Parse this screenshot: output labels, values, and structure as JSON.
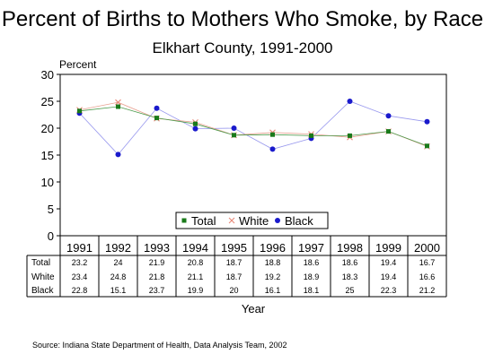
{
  "title": "Percent of Births to Mothers Who Smoke, by Race",
  "subtitle": "Elkhart County, 1991-2000",
  "source": "Source:  Indiana State Department of Health, Data Analysis Team, 2002",
  "chart_data": {
    "type": "line",
    "title": "Percent of Births to Mothers Who Smoke, by Race",
    "subtitle": "Elkhart County, 1991-2000",
    "ylabel": "Percent",
    "xlabel": "Year",
    "ylim": [
      0,
      30
    ],
    "yticks": [
      0,
      5,
      10,
      15,
      20,
      25,
      30
    ],
    "grid": false,
    "legend_position": "bottom-center",
    "x": [
      "1991",
      "1992",
      "1993",
      "1994",
      "1995",
      "1996",
      "1997",
      "1998",
      "1999",
      "2000"
    ],
    "series": [
      {
        "name": "Total",
        "marker": "square",
        "color": "#1a7a1a",
        "values": [
          23.2,
          24,
          21.9,
          20.8,
          18.7,
          18.8,
          18.6,
          18.6,
          19.4,
          16.7
        ],
        "labels": [
          "23.2",
          "24",
          "21.9",
          "20.8",
          "18.7",
          "18.8",
          "18.6",
          "18.6",
          "19.4",
          "16.7"
        ]
      },
      {
        "name": "White",
        "marker": "x",
        "color": "#e88a7a",
        "values": [
          23.4,
          24.8,
          21.8,
          21.1,
          18.7,
          19.2,
          18.9,
          18.3,
          19.4,
          16.6
        ],
        "labels": [
          "23.4",
          "24.8",
          "21.8",
          "21.1",
          "18.7",
          "19.2",
          "18.9",
          "18.3",
          "19.4",
          "16.6"
        ]
      },
      {
        "name": "Black",
        "marker": "circle",
        "color": "#1a1acc",
        "values": [
          22.8,
          15.1,
          23.7,
          19.9,
          20,
          16.1,
          18.1,
          25,
          22.3,
          21.2
        ],
        "labels": [
          "22.8",
          "15.1",
          "23.7",
          "19.9",
          "20",
          "16.1",
          "18.1",
          "25",
          "22.3",
          "21.2"
        ]
      }
    ]
  }
}
